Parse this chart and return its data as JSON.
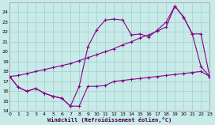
{
  "bg_color": "#c8eae8",
  "grid_color": "#a8d4d0",
  "line_color": "#880088",
  "ylim": [
    14,
    25
  ],
  "xlim": [
    0,
    23
  ],
  "yticks": [
    14,
    15,
    16,
    17,
    18,
    19,
    20,
    21,
    22,
    23,
    24
  ],
  "xticks": [
    0,
    1,
    2,
    3,
    4,
    5,
    6,
    7,
    8,
    9,
    10,
    11,
    12,
    13,
    14,
    15,
    16,
    17,
    18,
    19,
    20,
    21,
    22,
    23
  ],
  "xlabel": "Windchill (Refroidissement éolien,°C)",
  "curve1_x": [
    0,
    1,
    2,
    3,
    4,
    5,
    6,
    7,
    8,
    9,
    10,
    11,
    12,
    13,
    14,
    15,
    16,
    17,
    18,
    19,
    20,
    21,
    22,
    23
  ],
  "curve1_y": [
    17.5,
    16.4,
    16.0,
    16.3,
    15.8,
    15.5,
    15.3,
    14.5,
    14.5,
    16.5,
    16.5,
    16.6,
    17.0,
    17.1,
    17.2,
    17.3,
    17.4,
    17.5,
    17.6,
    17.7,
    17.8,
    17.9,
    18.0,
    17.5
  ],
  "curve2_x": [
    0,
    1,
    2,
    3,
    4,
    5,
    6,
    7,
    8,
    9,
    10,
    11,
    12,
    13,
    14,
    15,
    16,
    17,
    18,
    19,
    20,
    21,
    22,
    23
  ],
  "curve2_y": [
    17.5,
    16.4,
    16.0,
    16.3,
    15.8,
    15.5,
    15.3,
    14.5,
    16.5,
    20.5,
    22.2,
    23.2,
    23.3,
    23.2,
    21.7,
    21.8,
    21.5,
    22.2,
    23.0,
    24.6,
    23.5,
    21.8,
    18.5,
    17.5
  ],
  "curve3_x": [
    0,
    1,
    2,
    3,
    4,
    5,
    6,
    7,
    8,
    9,
    10,
    11,
    12,
    13,
    14,
    15,
    16,
    17,
    18,
    19,
    20,
    21,
    22,
    23
  ],
  "curve3_y": [
    17.5,
    17.6,
    17.8,
    18.0,
    18.2,
    18.4,
    18.6,
    18.8,
    19.1,
    19.4,
    19.7,
    20.0,
    20.3,
    20.7,
    21.0,
    21.4,
    21.7,
    22.1,
    22.5,
    24.6,
    23.5,
    21.8,
    21.8,
    17.5
  ]
}
